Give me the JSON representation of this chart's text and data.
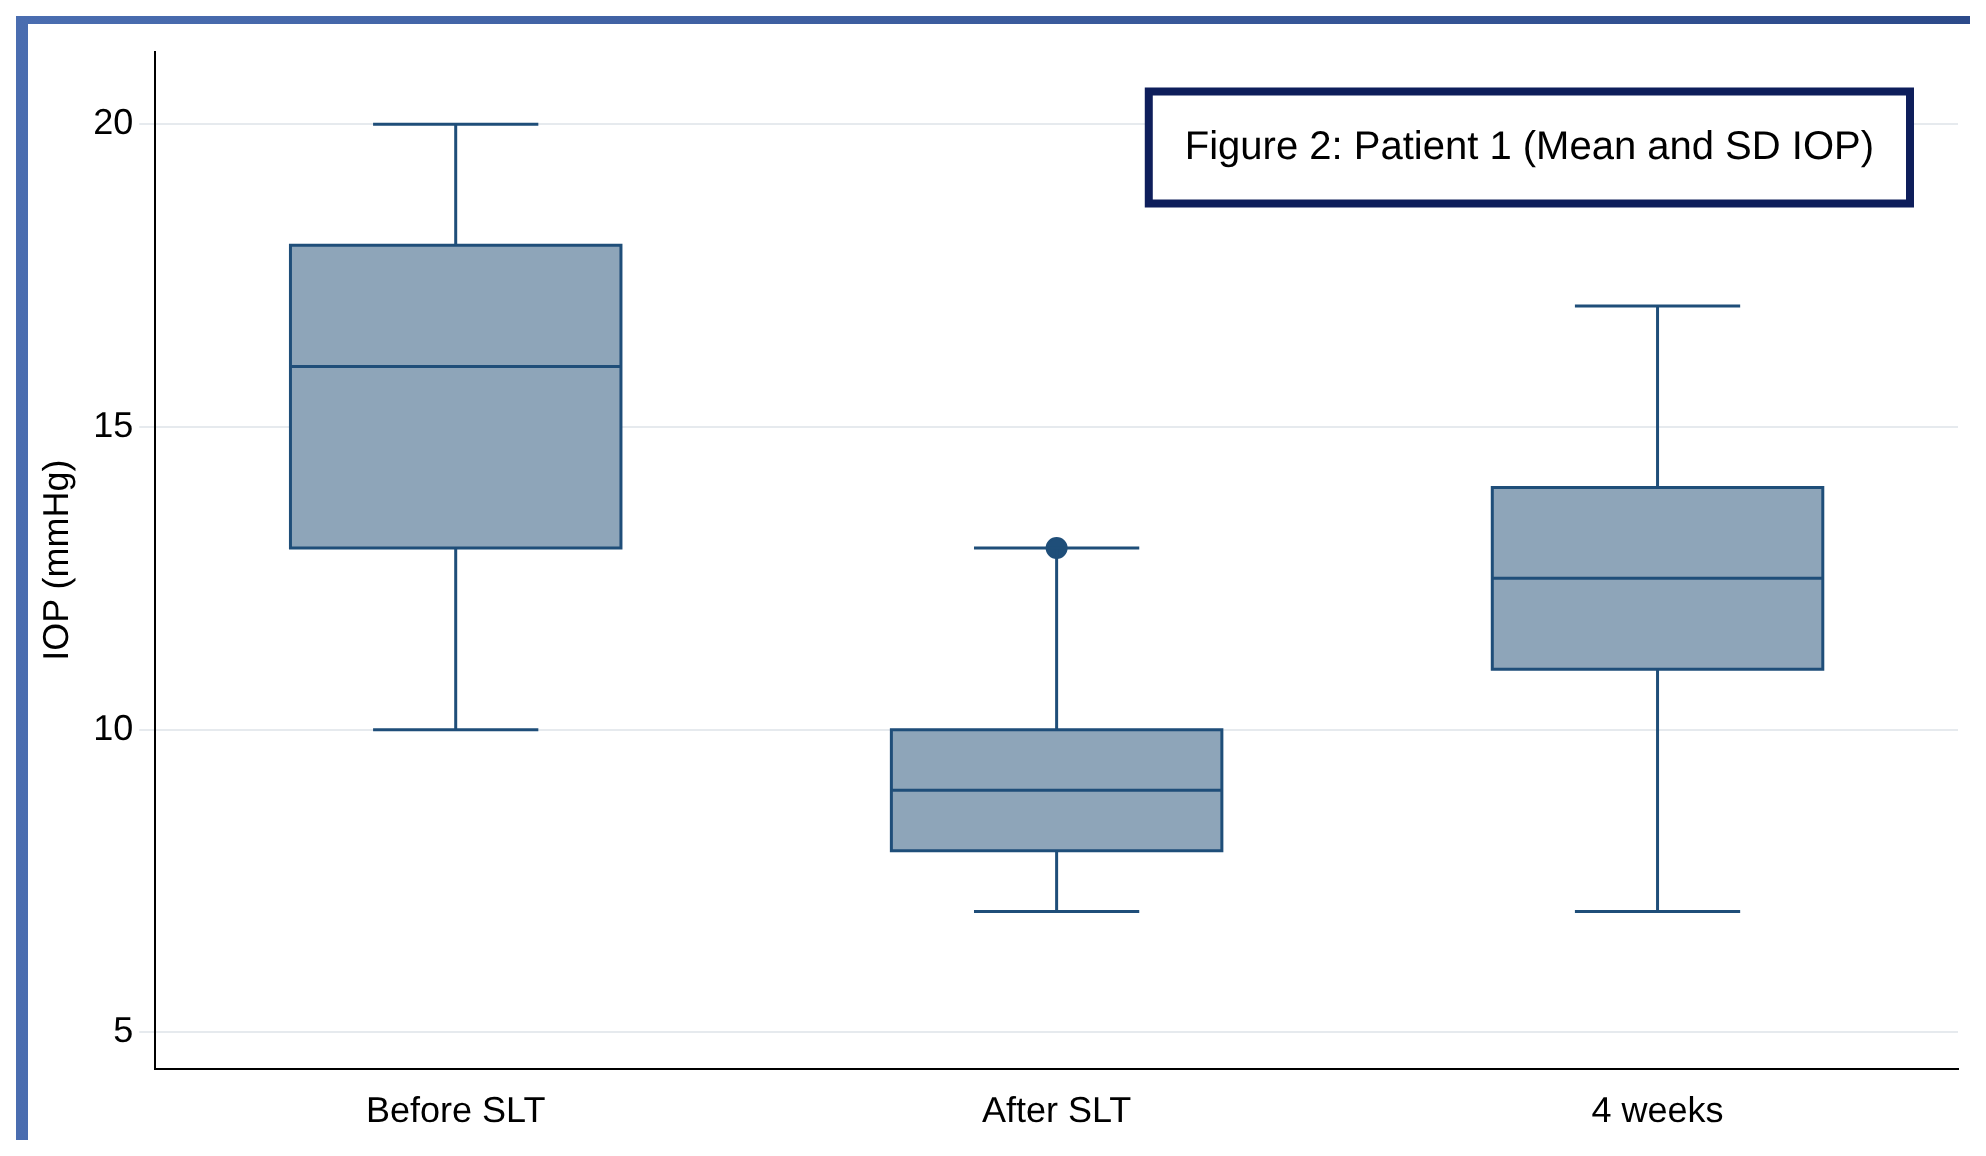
{
  "chart_data": {
    "type": "box",
    "title": "Figure 2: Patient 1 (Mean and SD IOP)",
    "ylabel": "IOP (mmHg)",
    "categories": [
      "Before SLT",
      "After SLT",
      "4 weeks"
    ],
    "series": [
      {
        "color": "#8ea5b9",
        "boxes": [
          {
            "low": 10,
            "q1": 13,
            "median": 16,
            "q3": 18,
            "high": 20
          },
          {
            "low": 7,
            "q1": 8,
            "median": 9,
            "q3": 10,
            "high": 13,
            "outliers": [
              13
            ]
          },
          {
            "low": 7,
            "q1": 11,
            "median": 12.5,
            "q3": 14,
            "high": 17
          }
        ]
      }
    ],
    "ylim": [
      4.4,
      21.2
    ],
    "yticks": [
      5,
      10,
      15,
      20
    ],
    "grid": "y",
    "legend": false
  }
}
